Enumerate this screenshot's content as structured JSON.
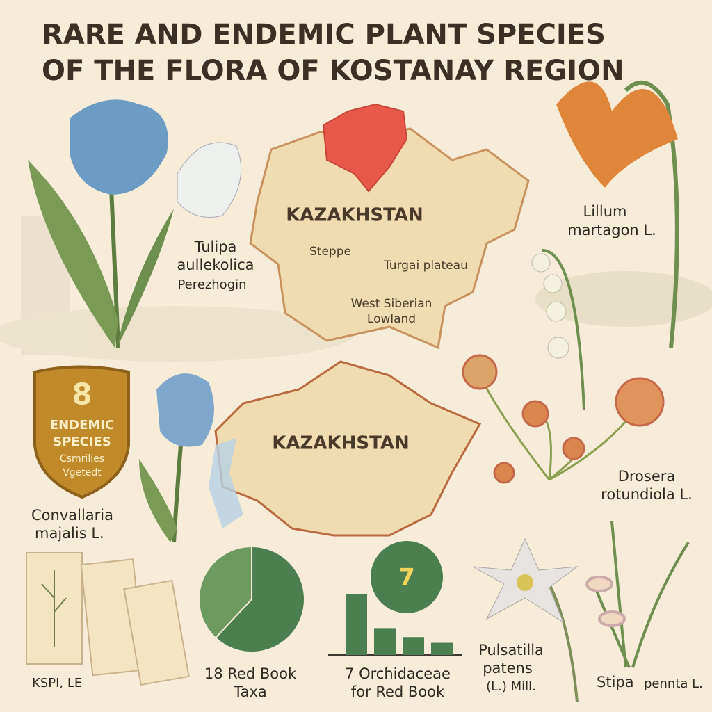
{
  "header": {
    "title_lines": [
      "RARE AND ENDEMIC PLANT SPECIES",
      "OF THE FLORA OF KOSTANAY REGION"
    ]
  },
  "species": {
    "tulipa": [
      "Tulipa",
      "aullekolica",
      "Perezhogin"
    ],
    "lilium": [
      "Lillum",
      "martagon L."
    ],
    "convallaria": [
      "Convallaria",
      "majalis L."
    ],
    "drosera": [
      "Drosera",
      "rotundiola L."
    ],
    "pulsatilla": [
      "Pulsatilla",
      "patens",
      "(L.) Mill."
    ],
    "stipa": [
      "Stipa",
      "pennta L."
    ]
  },
  "map_top": {
    "country": "KAZAKHSTAN",
    "regions": [
      "Steppe",
      "Turgai plateau",
      "West Siberian",
      "Lowland"
    ]
  },
  "map_bottom": {
    "country": "KAZAKHSTAN"
  },
  "badge": {
    "number": 8,
    "lines": [
      "ENDEMIC",
      "SPECIES",
      "Csmrilies",
      "Vgetedt"
    ]
  },
  "herbarium": {
    "label": "KSPI, LE"
  },
  "pie": {
    "values": [
      38,
      62
    ],
    "colors": [
      "#6d9a5e",
      "#4b7f4f"
    ],
    "caption": [
      "18 Red Book",
      "Taxa"
    ]
  },
  "bars": {
    "values": [
      95,
      42,
      28,
      19
    ],
    "color": "#4b7f4f",
    "badge": 7,
    "caption": [
      "7 Orchidaceae",
      "for Red Book"
    ]
  }
}
